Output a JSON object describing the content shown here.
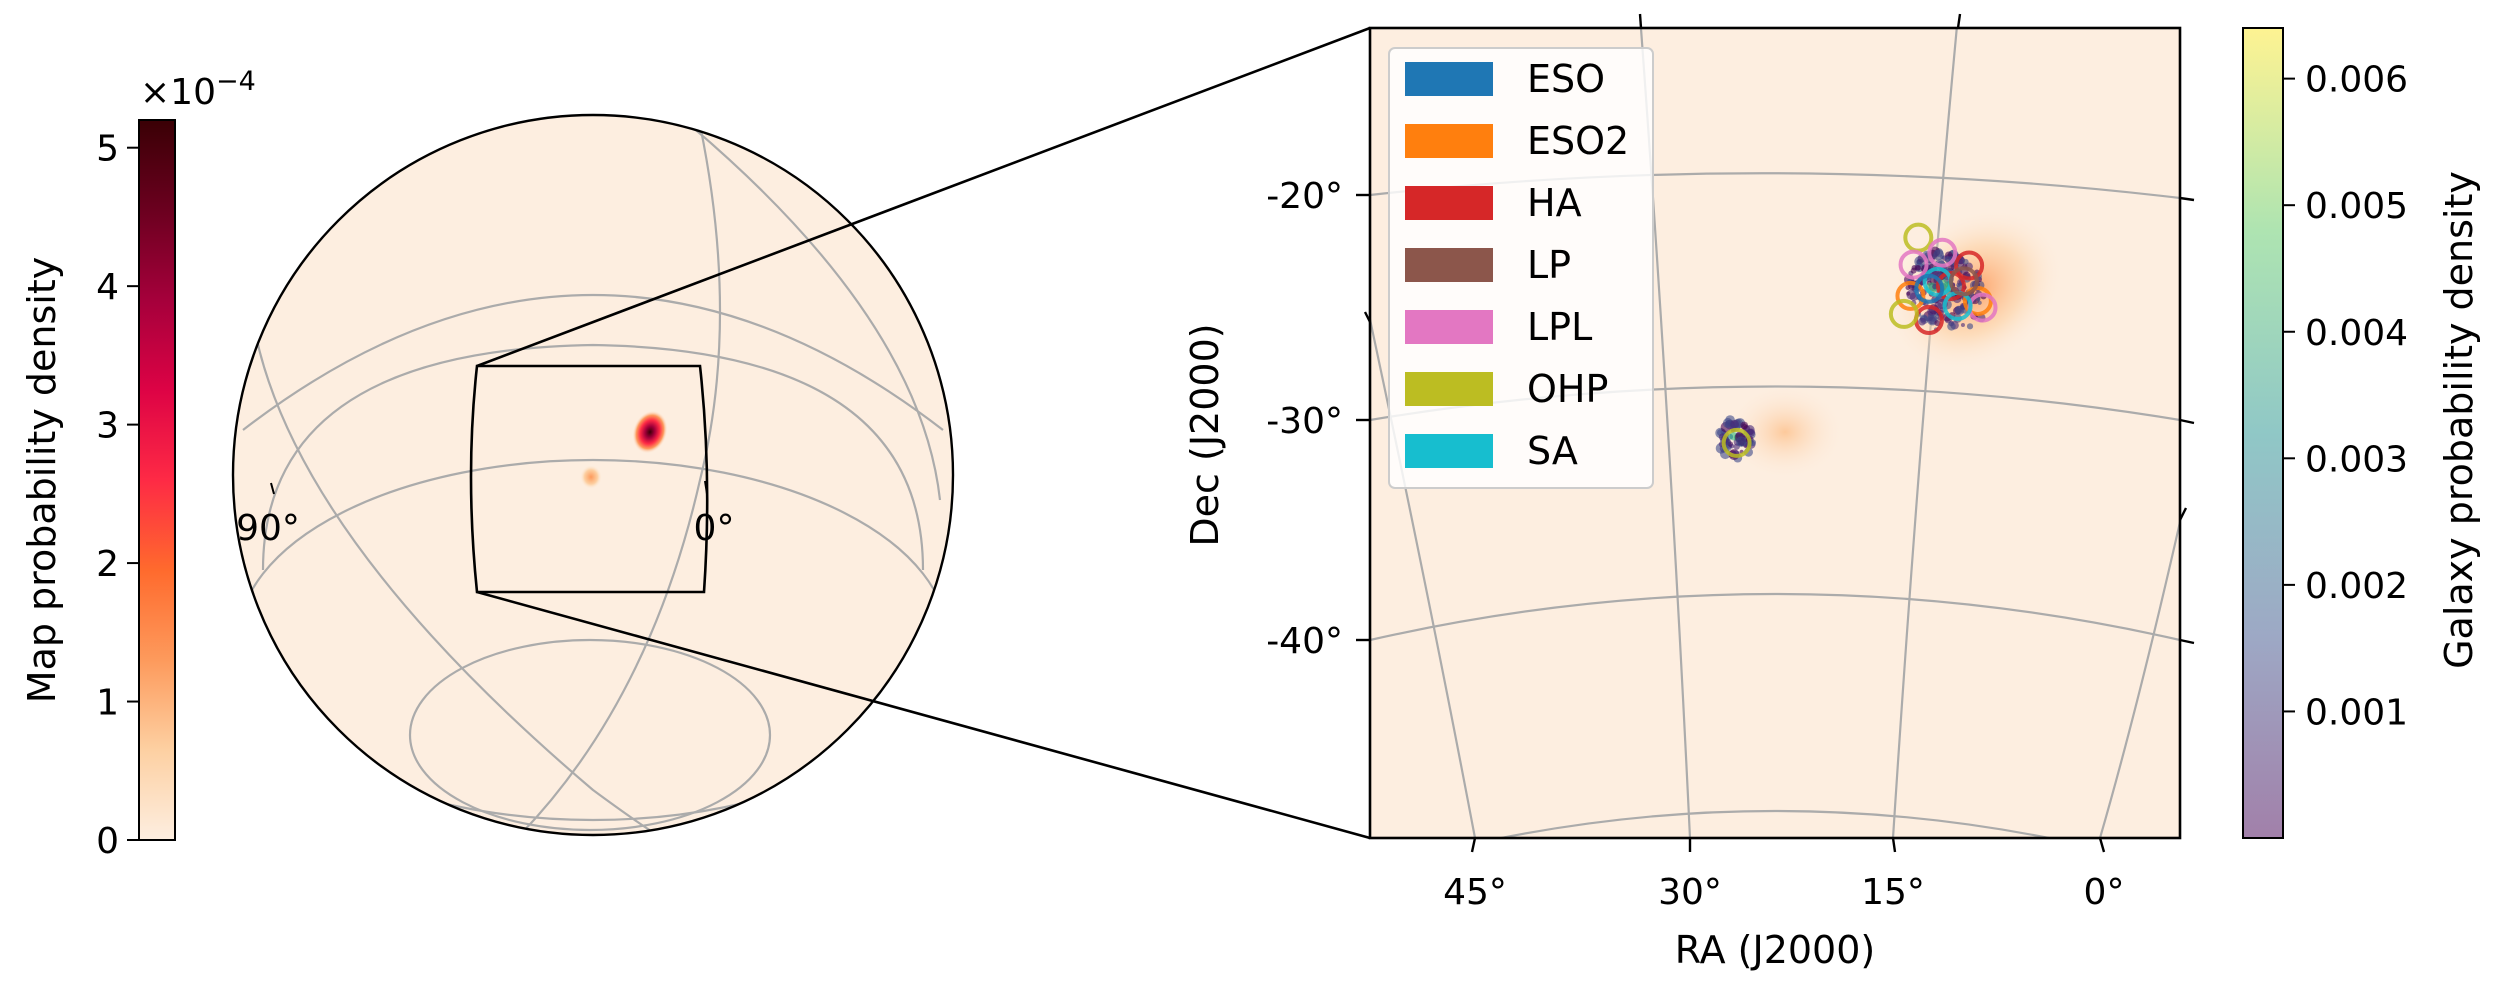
{
  "chart_data": [
    {
      "type": "heatmap",
      "panel": "globe",
      "colorbar": {
        "label": "Map probability density",
        "multiplier": "×10",
        "exponent": "−4",
        "ticks": [
          "0",
          "1",
          "2",
          "3",
          "4",
          "5"
        ],
        "tick_values": [
          0,
          1,
          2,
          3,
          4,
          5
        ],
        "range": [
          0,
          5.2
        ],
        "colormap": [
          "#fdeee0",
          "#fdd0a2",
          "#fd9a5c",
          "#ff6a2d",
          "#fe2a45",
          "#dd0345",
          "#a5003b",
          "#6b001f",
          "#3a0005"
        ]
      },
      "meridian_labels": [
        {
          "text": "90°",
          "ra": 90
        },
        {
          "text": "0°",
          "ra": 0
        }
      ],
      "background_color": "#fdeee0",
      "grid": true,
      "hotspots": [
        {
          "ra": 8.5,
          "dec": -24.5,
          "level": 5.2
        },
        {
          "ra": 24,
          "dec": -31,
          "level": 0.9
        }
      ],
      "zoom_region": {
        "ra": [
          -6,
          55
        ],
        "dec": [
          -48,
          -14
        ]
      }
    },
    {
      "type": "scatter",
      "panel": "zoom",
      "xlabel": "RA (J2000)",
      "ylabel": "Dec (J2000)",
      "x_ticks": [
        "45°",
        "30°",
        "15°",
        "0°"
      ],
      "x_tick_values": [
        45,
        30,
        15,
        0
      ],
      "y_ticks": [
        "-20°",
        "-30°",
        "-40°"
      ],
      "y_tick_values": [
        -20,
        -30,
        -40
      ],
      "xlim": [
        55,
        -6
      ],
      "ylim": [
        -48,
        -14
      ],
      "grid": true,
      "legend": {
        "position": "upper left",
        "entries": [
          {
            "label": "ESO",
            "color": "#1f77b4"
          },
          {
            "label": "ESO2",
            "color": "#ff7f0e"
          },
          {
            "label": "HA",
            "color": "#d62728"
          },
          {
            "label": "LP",
            "color": "#8c564b"
          },
          {
            "label": "LPL",
            "color": "#e377c2"
          },
          {
            "label": "OHP",
            "color": "#bcbd22"
          },
          {
            "label": "SA",
            "color": "#17becf"
          }
        ]
      },
      "galaxy_clusters": [
        {
          "ra": 9.0,
          "dec": -24.5,
          "galaxy_count": 180
        },
        {
          "ra": 23.8,
          "dec": -30.8,
          "galaxy_count": 70
        }
      ],
      "tiles": [
        {
          "survey": "HA",
          "ra": 7.4,
          "dec": -23.3
        },
        {
          "survey": "HA",
          "ra": 10.3,
          "dec": -25.7
        },
        {
          "survey": "HA",
          "ra": 8.7,
          "dec": -24.2
        },
        {
          "survey": "ESO2",
          "ra": 11.5,
          "dec": -24.6
        },
        {
          "survey": "ESO2",
          "ra": 6.9,
          "dec": -24.9
        },
        {
          "survey": "OHP",
          "ra": 10.8,
          "dec": -22.0
        },
        {
          "survey": "OHP",
          "ra": 12.0,
          "dec": -25.4
        },
        {
          "survey": "OHP",
          "ra": 23.8,
          "dec": -31.0
        },
        {
          "survey": "LPL",
          "ra": 9.2,
          "dec": -22.7
        },
        {
          "survey": "LPL",
          "ra": 6.6,
          "dec": -25.2
        },
        {
          "survey": "LPL",
          "ra": 11.2,
          "dec": -23.2
        },
        {
          "survey": "SA",
          "ra": 9.6,
          "dec": -24.0
        },
        {
          "survey": "SA",
          "ra": 8.3,
          "dec": -25.1
        },
        {
          "survey": "LP",
          "ra": 7.8,
          "dec": -24.0
        },
        {
          "survey": "ESO",
          "ra": 10.2,
          "dec": -24.3
        }
      ],
      "colorbar": {
        "label": "Galaxy probability density",
        "ticks": [
          "0.001",
          "0.002",
          "0.003",
          "0.004",
          "0.005",
          "0.006"
        ],
        "tick_values": [
          0.001,
          0.002,
          0.003,
          0.004,
          0.005,
          0.006
        ],
        "range": [
          0,
          0.0064
        ],
        "colormap": [
          "#440154",
          "#3b528b",
          "#21908d",
          "#5dc963",
          "#fde725"
        ],
        "alpha": 0.5
      }
    }
  ]
}
